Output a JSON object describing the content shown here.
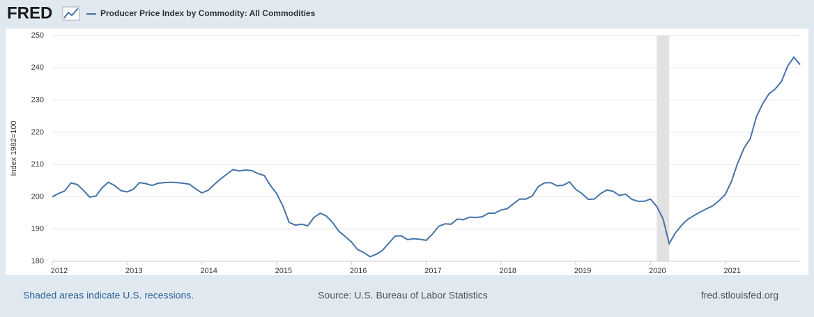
{
  "logo": "FRED",
  "chart_data": {
    "type": "line",
    "ylabel": "Index 1982=100",
    "note": "Shaded areas indicate U.S. recessions.",
    "source": "Source: U.S. Bureau of Labor Statistics",
    "site": "fred.stlouisfed.org",
    "x": [
      "2012-01",
      "2012-02",
      "2012-03",
      "2012-04",
      "2012-05",
      "2012-06",
      "2012-07",
      "2012-08",
      "2012-09",
      "2012-10",
      "2012-11",
      "2012-12",
      "2013-01",
      "2013-02",
      "2013-03",
      "2013-04",
      "2013-05",
      "2013-06",
      "2013-07",
      "2013-08",
      "2013-09",
      "2013-10",
      "2013-11",
      "2013-12",
      "2014-01",
      "2014-02",
      "2014-03",
      "2014-04",
      "2014-05",
      "2014-06",
      "2014-07",
      "2014-08",
      "2014-09",
      "2014-10",
      "2014-11",
      "2014-12",
      "2015-01",
      "2015-02",
      "2015-03",
      "2015-04",
      "2015-05",
      "2015-06",
      "2015-07",
      "2015-08",
      "2015-09",
      "2015-10",
      "2015-11",
      "2015-12",
      "2016-01",
      "2016-02",
      "2016-03",
      "2016-04",
      "2016-05",
      "2016-06",
      "2016-07",
      "2016-08",
      "2016-09",
      "2016-10",
      "2016-11",
      "2016-12",
      "2017-01",
      "2017-02",
      "2017-03",
      "2017-04",
      "2017-05",
      "2017-06",
      "2017-07",
      "2017-08",
      "2017-09",
      "2017-10",
      "2017-11",
      "2017-12",
      "2018-01",
      "2018-02",
      "2018-03",
      "2018-04",
      "2018-05",
      "2018-06",
      "2018-07",
      "2018-08",
      "2018-09",
      "2018-10",
      "2018-11",
      "2018-12",
      "2019-01",
      "2019-02",
      "2019-03",
      "2019-04",
      "2019-05",
      "2019-06",
      "2019-07",
      "2019-08",
      "2019-09",
      "2019-10",
      "2019-11",
      "2019-12",
      "2020-01",
      "2020-02",
      "2020-03",
      "2020-04",
      "2020-05",
      "2020-06",
      "2020-07",
      "2020-08",
      "2020-09",
      "2020-10",
      "2020-11",
      "2020-12",
      "2021-01",
      "2021-02",
      "2021-03",
      "2021-04",
      "2021-05",
      "2021-06",
      "2021-07",
      "2021-08",
      "2021-09",
      "2021-10",
      "2021-11",
      "2021-12",
      "2022-01"
    ],
    "series": [
      {
        "name": "Producer Price Index by Commodity: All Commodities",
        "color": "#4572a7",
        "values": [
          200,
          201,
          201.8,
          204.3,
          203.8,
          202,
          199.9,
          200.2,
          202.8,
          204.5,
          203.5,
          201.9,
          201.5,
          202.3,
          204.4,
          204.1,
          203.5,
          204.2,
          204.4,
          204.5,
          204.4,
          204.2,
          203.9,
          202.5,
          201.2,
          202,
          203.8,
          205.5,
          207,
          208.4,
          208,
          208.3,
          208.1,
          207.2,
          206.6,
          203.5,
          201,
          197.2,
          192.1,
          191.2,
          191.5,
          191,
          193.6,
          194.9,
          194,
          192,
          189.3,
          187.7,
          186,
          183.6,
          182.7,
          181.4,
          182.2,
          183.4,
          185.6,
          187.8,
          187.9,
          186.7,
          187,
          186.8,
          186.5,
          188.4,
          190.8,
          191.6,
          191.5,
          193.1,
          192.9,
          193.7,
          193.6,
          193.8,
          194.9,
          194.9,
          195.9,
          196.3,
          197.8,
          199.3,
          199.3,
          200.2,
          203.2,
          204.3,
          204.4,
          203.4,
          203.6,
          204.6,
          202.3,
          201,
          199.2,
          199.3,
          201,
          202.1,
          201.7,
          200.4,
          200.8,
          199.2,
          198.6,
          198.6,
          199.3,
          197,
          193.2,
          185.5,
          188.8,
          191.2,
          193,
          194.2,
          195.3,
          196.3,
          197.2,
          198.8,
          200.7,
          204.8,
          210.5,
          215,
          218,
          224.8,
          228.8,
          231.9,
          233.4,
          235.7,
          240.5,
          243.3,
          241
        ]
      }
    ],
    "recessions": [
      {
        "start": "2020-02",
        "end": "2020-04"
      }
    ],
    "xlim": [
      "2012-01",
      "2022-01"
    ],
    "xticks": [
      {
        "value": "2012-01",
        "label": "2012"
      },
      {
        "value": "2013-01",
        "label": "2013"
      },
      {
        "value": "2014-01",
        "label": "2014"
      },
      {
        "value": "2015-01",
        "label": "2015"
      },
      {
        "value": "2016-01",
        "label": "2016"
      },
      {
        "value": "2017-01",
        "label": "2017"
      },
      {
        "value": "2018-01",
        "label": "2018"
      },
      {
        "value": "2019-01",
        "label": "2019"
      },
      {
        "value": "2020-01",
        "label": "2020"
      },
      {
        "value": "2021-01",
        "label": "2021"
      }
    ],
    "ylim": [
      180,
      250
    ],
    "yticks": [
      180,
      190,
      200,
      210,
      220,
      230,
      240,
      250
    ],
    "grid": true
  }
}
